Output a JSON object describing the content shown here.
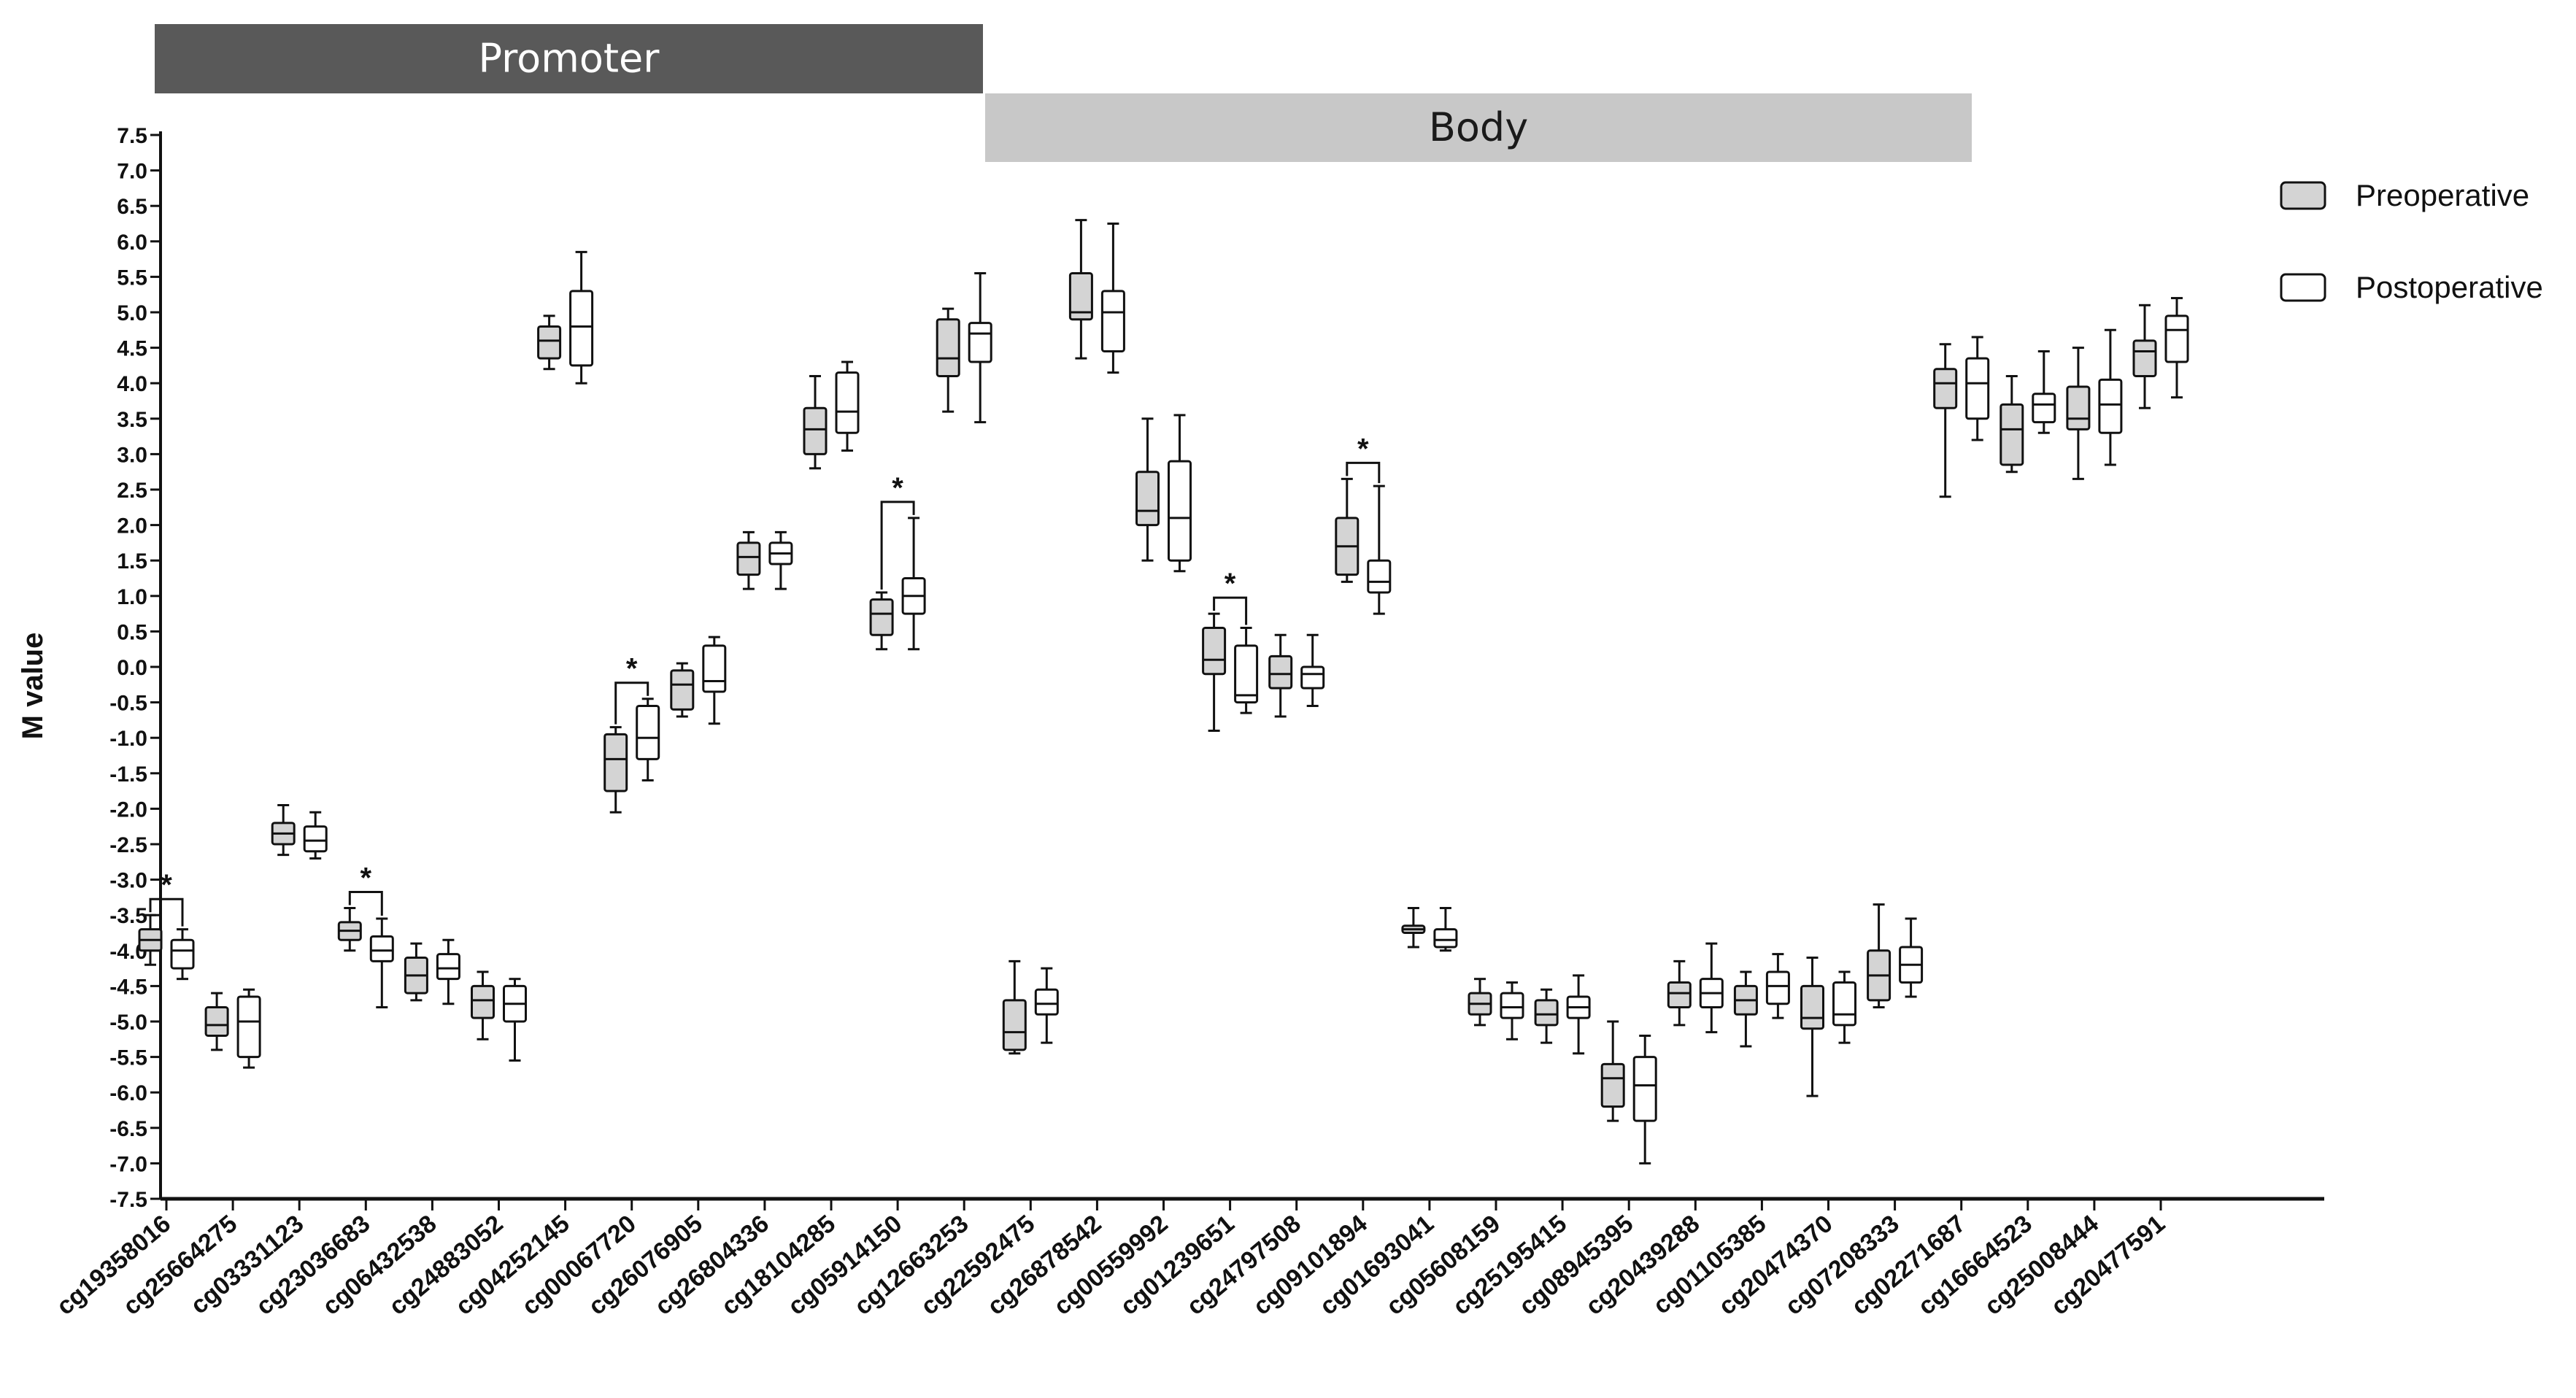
{
  "chart_data": {
    "type": "boxplot",
    "ylabel": "M value",
    "ylim": [
      -7.5,
      7.5
    ],
    "ytick_step": 0.5,
    "grid": false,
    "legend_position": "top-right",
    "regions": [
      {
        "label": "Promoter",
        "color": "#595959",
        "text_color": "#ffffff"
      },
      {
        "label": "Body",
        "color": "#c8c8c8",
        "text_color": "#1a1a1a"
      }
    ],
    "series": [
      {
        "name": "Preoperative",
        "fill": "#d4d4d4"
      },
      {
        "name": "Postoperative",
        "fill": "#ffffff"
      }
    ],
    "categories": [
      "cg19358016",
      "cg25664275",
      "cg03331123",
      "cg23036683",
      "cg06432538",
      "cg24883052",
      "cg04252145",
      "cg00067720",
      "cg26076905",
      "cg26804336",
      "cg18104285",
      "cg05914150",
      "cg12663253",
      "cg22592475",
      "cg26878542",
      "cg00559992",
      "cg01239651",
      "cg24797508",
      "cg09101894",
      "cg01693041",
      "cg05608159",
      "cg25195415",
      "cg08945395",
      "cg20439288",
      "cg01105385",
      "cg20474370",
      "cg07208333",
      "cg02271687",
      "cg16664523",
      "cg25008444",
      "cg20477591"
    ],
    "significance_marker": "*",
    "boxes": [
      {
        "pre": [
          -4.2,
          -4.0,
          -3.85,
          -3.7,
          -3.5
        ],
        "post": [
          -4.4,
          -4.25,
          -4.0,
          -3.85,
          -3.7
        ],
        "sig": true
      },
      {
        "pre": [
          -5.4,
          -5.2,
          -5.05,
          -4.8,
          -4.6
        ],
        "post": [
          -5.65,
          -5.5,
          -5.0,
          -4.65,
          -4.55
        ],
        "sig": false
      },
      {
        "pre": [
          -2.65,
          -2.5,
          -2.35,
          -2.2,
          -1.95
        ],
        "post": [
          -2.7,
          -2.6,
          -2.45,
          -2.25,
          -2.05
        ],
        "sig": false
      },
      {
        "pre": [
          -4.0,
          -3.85,
          -3.72,
          -3.6,
          -3.4
        ],
        "post": [
          -4.8,
          -4.15,
          -4.0,
          -3.8,
          -3.55
        ],
        "sig": true
      },
      {
        "pre": [
          -4.7,
          -4.6,
          -4.35,
          -4.1,
          -3.9
        ],
        "post": [
          -4.75,
          -4.4,
          -4.25,
          -4.05,
          -3.85
        ],
        "sig": false
      },
      {
        "pre": [
          -5.25,
          -4.95,
          -4.7,
          -4.5,
          -4.3
        ],
        "post": [
          -5.55,
          -5.0,
          -4.75,
          -4.5,
          -4.4
        ],
        "sig": false
      },
      {
        "pre": [
          4.2,
          4.35,
          4.6,
          4.8,
          4.95
        ],
        "post": [
          4.0,
          4.25,
          4.8,
          5.3,
          5.85
        ],
        "sig": false
      },
      {
        "pre": [
          -2.05,
          -1.75,
          -1.3,
          -0.95,
          -0.85
        ],
        "post": [
          -1.6,
          -1.3,
          -1.0,
          -0.55,
          -0.45
        ],
        "sig": true
      },
      {
        "pre": [
          -0.7,
          -0.6,
          -0.25,
          -0.05,
          0.05
        ],
        "post": [
          -0.8,
          -0.35,
          -0.2,
          0.3,
          0.42
        ],
        "sig": false
      },
      {
        "pre": [
          1.1,
          1.3,
          1.55,
          1.75,
          1.9
        ],
        "post": [
          1.1,
          1.45,
          1.6,
          1.75,
          1.9
        ],
        "sig": false
      },
      {
        "pre": [
          2.8,
          3.0,
          3.35,
          3.65,
          4.1
        ],
        "post": [
          3.05,
          3.3,
          3.6,
          4.15,
          4.3
        ],
        "sig": false
      },
      {
        "pre": [
          0.25,
          0.45,
          0.75,
          0.95,
          1.05
        ],
        "post": [
          0.25,
          0.75,
          1.0,
          1.25,
          2.1
        ],
        "sig": true
      },
      {
        "pre": [
          3.6,
          4.1,
          4.35,
          4.9,
          5.05
        ],
        "post": [
          3.45,
          4.3,
          4.7,
          4.85,
          5.55
        ],
        "sig": false
      },
      {
        "pre": [
          -5.45,
          -5.4,
          -5.15,
          -4.7,
          -4.15
        ],
        "post": [
          -5.3,
          -4.9,
          -4.75,
          -4.55,
          -4.25
        ],
        "sig": false
      },
      {
        "pre": [
          4.35,
          4.9,
          5.0,
          5.55,
          6.3
        ],
        "post": [
          4.15,
          4.45,
          5.0,
          5.3,
          6.25
        ],
        "sig": false
      },
      {
        "pre": [
          1.5,
          2.0,
          2.2,
          2.75,
          3.5
        ],
        "post": [
          1.35,
          1.5,
          2.1,
          2.9,
          3.55
        ],
        "sig": false
      },
      {
        "pre": [
          -0.9,
          -0.1,
          0.1,
          0.55,
          0.75
        ],
        "post": [
          -0.65,
          -0.5,
          -0.4,
          0.3,
          0.55
        ],
        "sig": true
      },
      {
        "pre": [
          -0.7,
          -0.3,
          -0.1,
          0.15,
          0.45
        ],
        "post": [
          -0.55,
          -0.3,
          -0.1,
          0.0,
          0.45
        ],
        "sig": false
      },
      {
        "pre": [
          1.2,
          1.3,
          1.7,
          2.1,
          2.65
        ],
        "post": [
          0.75,
          1.05,
          1.2,
          1.5,
          2.55
        ],
        "sig": true
      },
      {
        "pre": [
          -3.95,
          -3.75,
          -3.7,
          -3.65,
          -3.4
        ],
        "post": [
          -4.0,
          -3.95,
          -3.85,
          -3.7,
          -3.4
        ],
        "sig": false
      },
      {
        "pre": [
          -5.05,
          -4.9,
          -4.75,
          -4.6,
          -4.4
        ],
        "post": [
          -5.25,
          -4.95,
          -4.8,
          -4.6,
          -4.45
        ],
        "sig": false
      },
      {
        "pre": [
          -5.3,
          -5.05,
          -4.9,
          -4.7,
          -4.55
        ],
        "post": [
          -5.45,
          -4.95,
          -4.8,
          -4.65,
          -4.35
        ],
        "sig": false
      },
      {
        "pre": [
          -6.4,
          -6.2,
          -5.8,
          -5.6,
          -5.0
        ],
        "post": [
          -7.0,
          -6.4,
          -5.9,
          -5.5,
          -5.2
        ],
        "sig": false
      },
      {
        "pre": [
          -5.05,
          -4.8,
          -4.6,
          -4.45,
          -4.15
        ],
        "post": [
          -5.15,
          -4.8,
          -4.6,
          -4.4,
          -3.9
        ],
        "sig": false
      },
      {
        "pre": [
          -5.35,
          -4.9,
          -4.7,
          -4.5,
          -4.3
        ],
        "post": [
          -4.95,
          -4.75,
          -4.5,
          -4.3,
          -4.05
        ],
        "sig": false
      },
      {
        "pre": [
          -6.05,
          -5.1,
          -4.95,
          -4.5,
          -4.1
        ],
        "post": [
          -5.3,
          -5.05,
          -4.9,
          -4.45,
          -4.3
        ],
        "sig": false
      },
      {
        "pre": [
          -4.8,
          -4.7,
          -4.35,
          -4.0,
          -3.35
        ],
        "post": [
          -4.65,
          -4.45,
          -4.2,
          -3.95,
          -3.55
        ],
        "sig": false
      },
      {
        "pre": [
          2.4,
          3.65,
          4.0,
          4.2,
          4.55
        ],
        "post": [
          3.2,
          3.5,
          4.0,
          4.35,
          4.65
        ],
        "sig": false
      },
      {
        "pre": [
          2.75,
          2.85,
          3.35,
          3.7,
          4.1
        ],
        "post": [
          3.3,
          3.45,
          3.7,
          3.85,
          4.45
        ],
        "sig": false
      },
      {
        "pre": [
          2.65,
          3.35,
          3.5,
          3.95,
          4.5
        ],
        "post": [
          2.85,
          3.3,
          3.7,
          4.05,
          4.75
        ],
        "sig": false
      },
      {
        "pre": [
          3.65,
          4.1,
          4.45,
          4.6,
          5.1
        ],
        "post": [
          3.8,
          4.3,
          4.75,
          4.95,
          5.2
        ],
        "sig": false
      }
    ]
  }
}
